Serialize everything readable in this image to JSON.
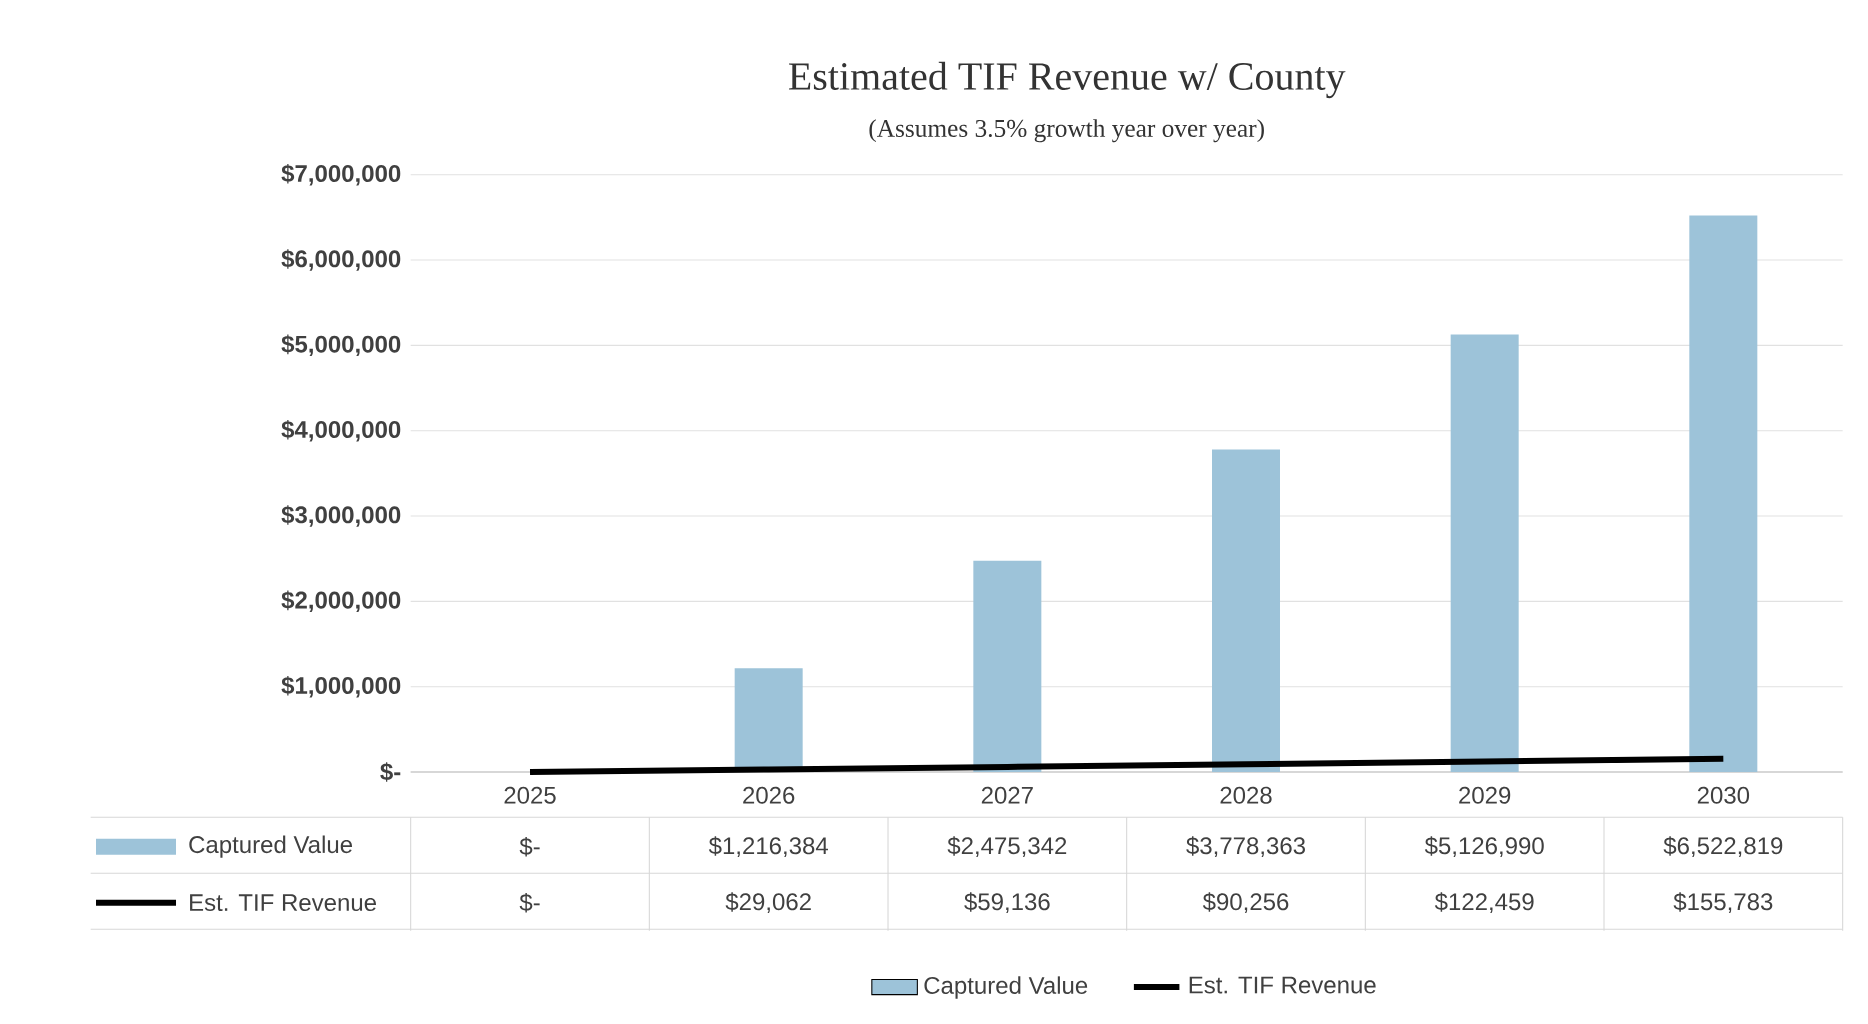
{
  "chart_data": {
    "type": "bar",
    "title": "Estimated TIF Revenue w/ County",
    "subtitle": "(Assumes 3.5% growth year over year)",
    "categories": [
      "2025",
      "2026",
      "2027",
      "2028",
      "2029",
      "2030"
    ],
    "series": [
      {
        "name": "Captured Value",
        "color": "#9dc3d9",
        "values": [
          0,
          1216384,
          2475342,
          3778363,
          5126990,
          6522819
        ],
        "value_labels": [
          "$-",
          "$1,216,384",
          "$2,475,342",
          "$3,778,363",
          "$5,126,990",
          "$6,522,819"
        ]
      },
      {
        "name": "Est. TIF Revenue",
        "type": "line",
        "color": "#000000",
        "values": [
          0,
          29062,
          59136,
          90256,
          122459,
          155783
        ],
        "value_labels": [
          "$-",
          "$29,062",
          "$59,136",
          "$90,256",
          "$122,459",
          "$155,783"
        ]
      }
    ],
    "ylim": [
      0,
      7000000
    ],
    "yticks": [
      {
        "value": 0,
        "label": "$-"
      },
      {
        "value": 1000000,
        "label": "$1,000,000"
      },
      {
        "value": 2000000,
        "label": "$2,000,000"
      },
      {
        "value": 3000000,
        "label": "$3,000,000"
      },
      {
        "value": 4000000,
        "label": "$4,000,000"
      },
      {
        "value": 5000000,
        "label": "$5,000,000"
      },
      {
        "value": 6000000,
        "label": "$6,000,000"
      },
      {
        "value": 7000000,
        "label": "$7,000,000"
      }
    ],
    "grid": "y",
    "legend": "bottom"
  }
}
